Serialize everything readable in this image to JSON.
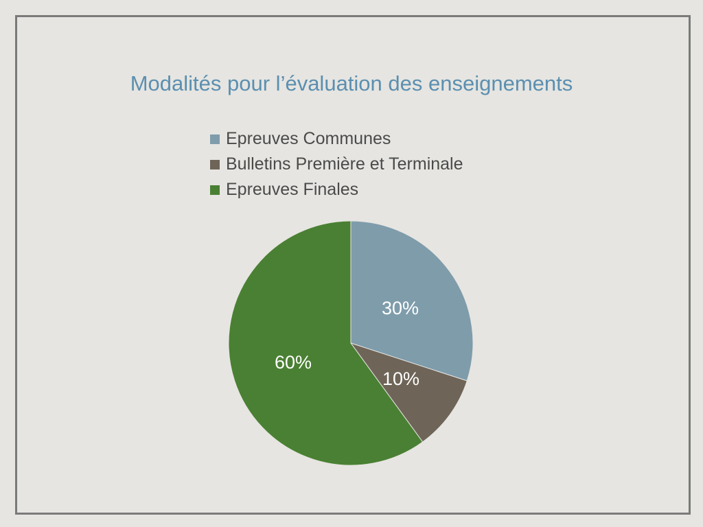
{
  "chart_data": {
    "type": "pie",
    "title": "Modalités pour l’évaluation des enseignements",
    "categories": [
      "Epreuves Communes",
      "Bulletins Première et Terminale",
      "Epreuves Finales"
    ],
    "values": [
      30,
      10,
      60
    ],
    "labels": [
      "30%",
      "10%",
      "60%"
    ],
    "colors": [
      "#7f9cab",
      "#6e6558",
      "#4a8033"
    ],
    "legend_position": "top"
  }
}
